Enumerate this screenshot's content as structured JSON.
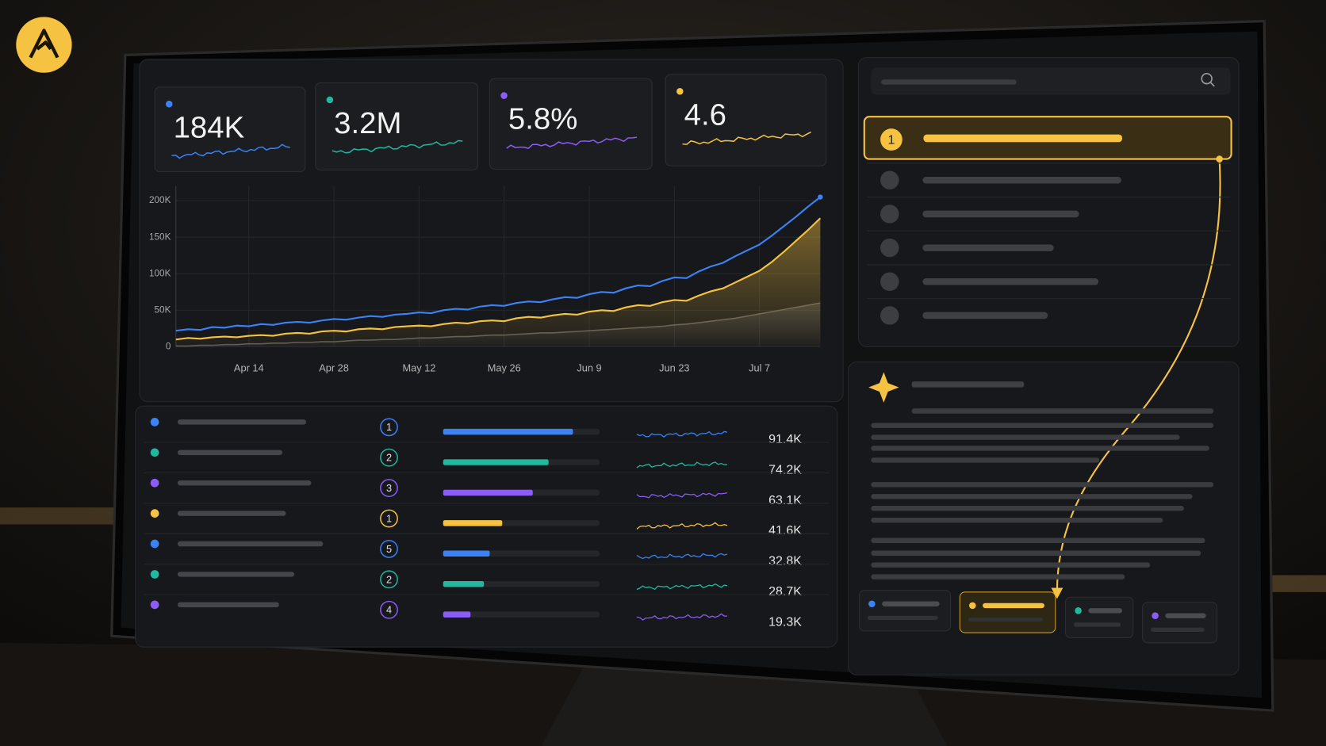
{
  "kpis": [
    {
      "value": "184K",
      "color": "#3b82f6"
    },
    {
      "value": "3.2M",
      "color": "#22b8a0"
    },
    {
      "value": "5.8%",
      "color": "#8b5cf6"
    },
    {
      "value": "4.6",
      "color": "#f5c242"
    }
  ],
  "chart_data": {
    "type": "line",
    "categories": [
      null,
      null,
      null,
      null,
      null,
      null,
      "Apr 14",
      null,
      null,
      null,
      null,
      null,
      null,
      "Apr 28",
      null,
      null,
      null,
      null,
      null,
      null,
      "May 12",
      null,
      null,
      null,
      null,
      null,
      null,
      "May 26",
      null,
      null,
      null,
      null,
      null,
      null,
      "Jun 9",
      null,
      null,
      null,
      null,
      null,
      null,
      "Jun 23",
      null,
      null,
      null,
      null,
      null,
      null,
      "Jul 7",
      null,
      null,
      null,
      null,
      null
    ],
    "series": [
      {
        "color": "#3b82f6",
        "values": [
          22000,
          24000,
          23000,
          27000,
          26000,
          29000,
          28000,
          31000,
          30000,
          33000,
          34000,
          33000,
          36000,
          38000,
          37000,
          40000,
          42000,
          41000,
          44000,
          45000,
          47000,
          46000,
          50000,
          52000,
          51000,
          55000,
          57000,
          56000,
          60000,
          62000,
          61000,
          65000,
          68000,
          67000,
          72000,
          75000,
          74000,
          80000,
          84000,
          83000,
          90000,
          95000,
          94000,
          103000,
          110000,
          115000,
          124000,
          132000,
          140000,
          152000,
          165000,
          178000,
          192000,
          205000
        ]
      },
      {
        "color": "#f5c242",
        "fill": true,
        "values": [
          10000,
          12000,
          11000,
          13000,
          14000,
          13000,
          15000,
          16000,
          15000,
          18000,
          19000,
          18000,
          21000,
          22000,
          21000,
          24000,
          25000,
          24000,
          27000,
          28000,
          29000,
          28000,
          31000,
          33000,
          32000,
          35000,
          36000,
          35000,
          39000,
          41000,
          40000,
          43000,
          45000,
          44000,
          48000,
          50000,
          49000,
          54000,
          57000,
          56000,
          61000,
          64000,
          63000,
          70000,
          76000,
          80000,
          88000,
          96000,
          104000,
          116000,
          130000,
          145000,
          160000,
          176000
        ]
      },
      {
        "color": "#5c5a56",
        "fill": true,
        "values": [
          1000,
          1000,
          2000,
          2000,
          3000,
          3000,
          4000,
          4000,
          5000,
          5000,
          6000,
          6000,
          7000,
          7000,
          8000,
          9000,
          9000,
          10000,
          10000,
          11000,
          12000,
          12000,
          13000,
          14000,
          14000,
          15000,
          16000,
          16000,
          17000,
          18000,
          19000,
          19000,
          20000,
          21000,
          22000,
          23000,
          24000,
          25000,
          26000,
          27000,
          28000,
          30000,
          31000,
          33000,
          35000,
          37000,
          39000,
          42000,
          45000,
          48000,
          51000,
          54000,
          57000,
          60000
        ]
      }
    ],
    "ylim": [
      0,
      220000
    ],
    "yticks": [
      0,
      {
        "value": 50000,
        "label": "50K"
      },
      {
        "value": 100000,
        "label": "100K"
      },
      {
        "value": 150000,
        "label": "150K"
      },
      {
        "value": 200000,
        "label": "200K"
      }
    ],
    "grid": true
  },
  "table": {
    "colors": [
      "#3b82f6",
      "#22b8a0",
      "#8b5cf6",
      "#f5c242",
      "#3b82f6",
      "#22b8a0",
      "#8b5cf6"
    ],
    "ranks": [
      "1",
      "2",
      "3",
      "1",
      "5",
      "2",
      "4"
    ],
    "values": [
      91400,
      74200,
      63100,
      41600,
      32800,
      28700,
      19300
    ],
    "value_labels": [
      "91.4K",
      "74.2K",
      "63.1K",
      "41.6K",
      "32.8K",
      "28.7K",
      "19.3K"
    ]
  },
  "list": {
    "highlight_rank": "1"
  }
}
